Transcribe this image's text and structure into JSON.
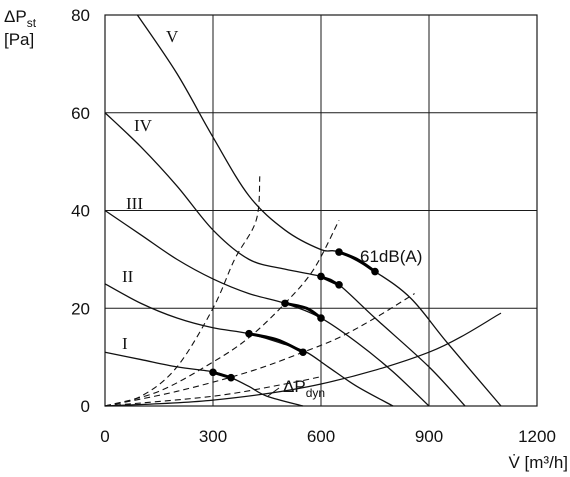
{
  "chart_data": {
    "type": "line",
    "title": "",
    "xlabel": "V̇ [m³/h]",
    "ylabel": [
      "ΔPst",
      "[Pa]"
    ],
    "ylabel_parts": {
      "delta": "ΔP",
      "sub": "st",
      "unit": "[Pa]"
    },
    "xlabel_parts": {
      "symbol": "V̇",
      "unit": "[m³/h]"
    },
    "xlim": [
      0,
      1200
    ],
    "ylim": [
      0,
      80
    ],
    "xticks": [
      0,
      300,
      600,
      900,
      1200
    ],
    "yticks": [
      0,
      20,
      40,
      60,
      80
    ],
    "x_tick_labels": [
      "0",
      "300",
      "600",
      "900",
      "1200"
    ],
    "y_tick_labels": [
      "0",
      "20",
      "40",
      "60",
      "80"
    ],
    "grid": true,
    "series": [
      {
        "name": "I",
        "points": [
          [
            0,
            11
          ],
          [
            100,
            9.5
          ],
          [
            200,
            8
          ],
          [
            300,
            7
          ],
          [
            350,
            5.8
          ],
          [
            400,
            4
          ],
          [
            450,
            2
          ],
          [
            550,
            0
          ]
        ]
      },
      {
        "name": "II",
        "points": [
          [
            0,
            25
          ],
          [
            100,
            21
          ],
          [
            200,
            18
          ],
          [
            300,
            16
          ],
          [
            400,
            14.8
          ],
          [
            500,
            12.6
          ],
          [
            560,
            11
          ],
          [
            620,
            8
          ],
          [
            700,
            4
          ],
          [
            800,
            0
          ]
        ]
      },
      {
        "name": "III",
        "points": [
          [
            0,
            40
          ],
          [
            100,
            35
          ],
          [
            200,
            30
          ],
          [
            300,
            26
          ],
          [
            400,
            23
          ],
          [
            500,
            21
          ],
          [
            600,
            18
          ],
          [
            700,
            13
          ],
          [
            800,
            7
          ],
          [
            900,
            0
          ]
        ]
      },
      {
        "name": "IV",
        "points": [
          [
            0,
            60
          ],
          [
            100,
            53
          ],
          [
            200,
            45
          ],
          [
            300,
            36
          ],
          [
            400,
            30
          ],
          [
            500,
            28
          ],
          [
            600,
            26.5
          ],
          [
            650,
            24.8
          ],
          [
            750,
            18
          ],
          [
            900,
            8
          ],
          [
            1000,
            0
          ]
        ]
      },
      {
        "name": "V",
        "points": [
          [
            90,
            80
          ],
          [
            200,
            68
          ],
          [
            300,
            55
          ],
          [
            400,
            43
          ],
          [
            500,
            36
          ],
          [
            600,
            32
          ],
          [
            650,
            31.5
          ],
          [
            750,
            27.5
          ],
          [
            850,
            22
          ],
          [
            950,
            13
          ],
          [
            1100,
            0
          ]
        ]
      }
    ],
    "system_curves": [
      {
        "points": [
          [
            0,
            0
          ],
          [
            100,
            2
          ],
          [
            200,
            8
          ],
          [
            300,
            20
          ],
          [
            360,
            30
          ],
          [
            420,
            38
          ],
          [
            430,
            47
          ]
        ]
      },
      {
        "points": [
          [
            0,
            0
          ],
          [
            150,
            3
          ],
          [
            300,
            9
          ],
          [
            400,
            14
          ],
          [
            500,
            21
          ],
          [
            580,
            28
          ],
          [
            650,
            38
          ]
        ]
      },
      {
        "points": [
          [
            0,
            0
          ],
          [
            200,
            3
          ],
          [
            400,
            7
          ],
          [
            550,
            11
          ],
          [
            650,
            14
          ],
          [
            750,
            18
          ],
          [
            860,
            23
          ]
        ]
      },
      {
        "points": [
          [
            0,
            0
          ],
          [
            300,
            2
          ],
          [
            500,
            4.5
          ],
          [
            600,
            6
          ]
        ]
      }
    ],
    "dynamic_pressure": {
      "name": "ΔPdyn",
      "name_parts": {
        "main": "ΔP",
        "sub": "dyn"
      },
      "points": [
        [
          0,
          0
        ],
        [
          300,
          1.2
        ],
        [
          600,
          4.5
        ],
        [
          900,
          11
        ],
        [
          1100,
          19
        ]
      ]
    },
    "highlight_segments": [
      {
        "curve": "I",
        "points": [
          [
            300,
            6.9
          ],
          [
            350,
            5.8
          ]
        ]
      },
      {
        "curve": "II",
        "points": [
          [
            400,
            14.8
          ],
          [
            480,
            13.5
          ],
          [
            550,
            11
          ]
        ]
      },
      {
        "curve": "III",
        "points": [
          [
            500,
            21
          ],
          [
            560,
            20
          ],
          [
            600,
            18
          ]
        ]
      },
      {
        "curve": "IV",
        "points": [
          [
            600,
            26.5
          ],
          [
            650,
            24.8
          ]
        ]
      },
      {
        "curve": "V",
        "points": [
          [
            650,
            31.5
          ],
          [
            700,
            30
          ],
          [
            750,
            27.5
          ]
        ]
      }
    ],
    "annotations": [
      {
        "text": "61dB(A)",
        "x": 710,
        "y": 31
      },
      {
        "text": "ΔPdyn",
        "x": 490,
        "y": 4
      }
    ]
  }
}
